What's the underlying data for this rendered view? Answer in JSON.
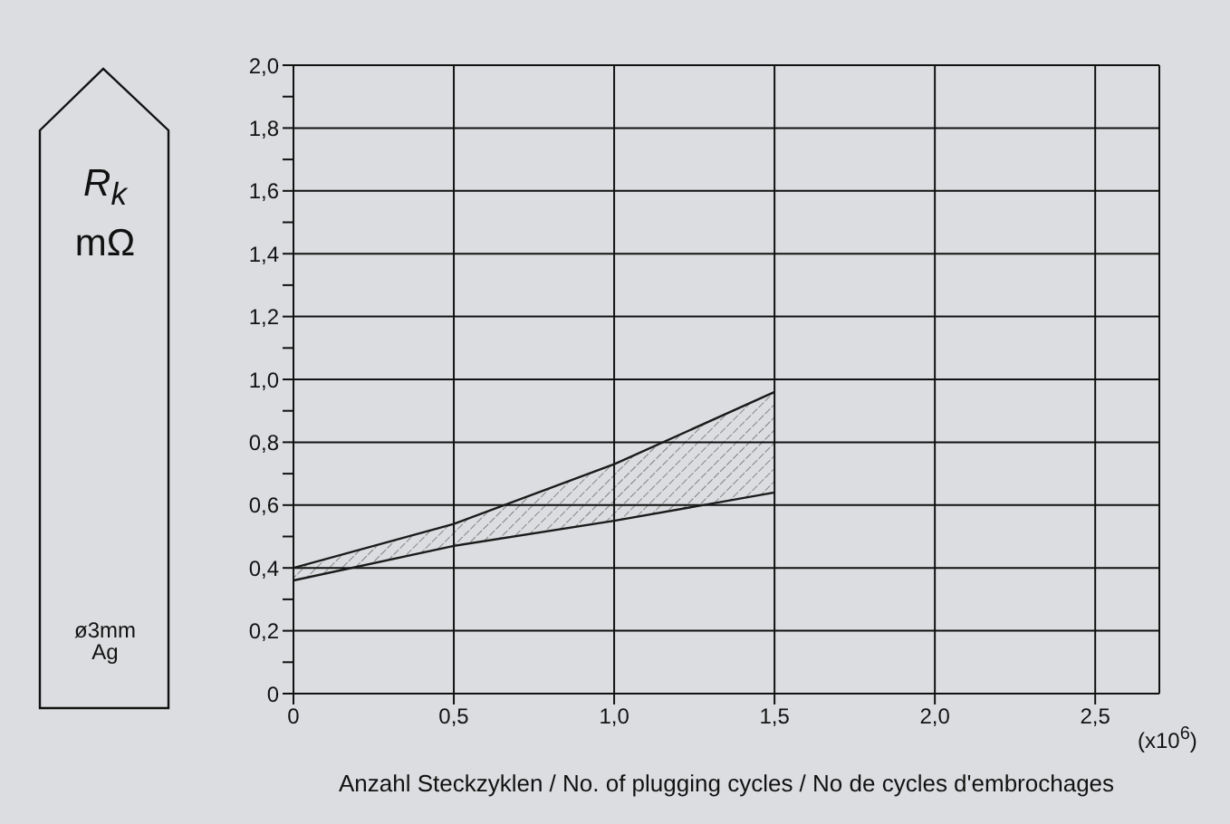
{
  "chart_data": {
    "type": "line",
    "ylabel": "R$_{k}$ mΩ",
    "xlabel": "Anzahl Steckzyklen / No. of plugging cycles / No de cycles d'embrochages",
    "annotations": [
      "ø3mm Ag",
      "(x10$^{6}$)"
    ],
    "x": [
      0,
      0.5,
      1.0,
      1.5
    ],
    "series": [
      {
        "color": "#1a1a1a",
        "values": [
          0.4,
          0.54,
          0.73,
          0.96
        ],
        "lower": [
          0.36,
          0.47,
          0.55,
          0.64
        ],
        "upper": [
          0.4,
          0.54,
          0.73,
          0.96
        ]
      },
      {
        "color": "#1a1a1a",
        "values": [
          0.36,
          0.47,
          0.55,
          0.64
        ]
      }
    ],
    "xlim": [
      0,
      2.7
    ],
    "xticks": [
      0,
      {
        "value": 0.5,
        "label": "0,5"
      },
      {
        "value": 1.0,
        "label": "1,0"
      },
      {
        "value": 1.5,
        "label": "1,5"
      },
      {
        "value": 2.0,
        "label": "2,0"
      },
      {
        "value": 2.5,
        "label": "2,5"
      }
    ],
    "ylim": [
      0,
      2.0
    ],
    "yticks": [
      0,
      {
        "value": 0.1,
        "label": null
      },
      {
        "value": 0.2,
        "label": "0,2"
      },
      {
        "value": 0.3,
        "label": null
      },
      {
        "value": 0.4,
        "label": "0,4"
      },
      {
        "value": 0.5,
        "label": null
      },
      {
        "value": 0.6,
        "label": "0,6"
      },
      {
        "value": 0.7,
        "label": null
      },
      {
        "value": 0.8,
        "label": "0,8"
      },
      {
        "value": 0.9,
        "label": null
      },
      {
        "value": 1.0,
        "label": "1,0"
      },
      {
        "value": 1.1,
        "label": null
      },
      {
        "value": 1.2,
        "label": "1,2"
      },
      {
        "value": 1.3,
        "label": null
      },
      {
        "value": 1.4,
        "label": "1,4"
      },
      {
        "value": 1.5,
        "label": null
      },
      {
        "value": 1.6,
        "label": "1,6"
      },
      {
        "value": 1.7,
        "label": null
      },
      {
        "value": 1.8,
        "label": "1,8"
      },
      {
        "value": 1.9,
        "label": null
      },
      {
        "value": 2.0,
        "label": "2,0"
      }
    ],
    "grid": true,
    "marker": "none",
    "line_style": "solid",
    "legend": false
  }
}
